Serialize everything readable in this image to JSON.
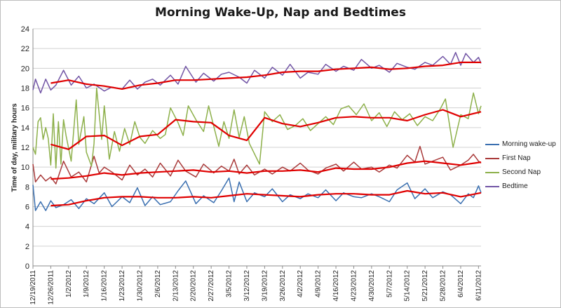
{
  "chart_data": {
    "type": "line",
    "title": "Morning Wake-Up, Nap and Bedtimes",
    "ylabel": "Time of day, military hours",
    "xlabel": "",
    "ylim": [
      0,
      24
    ],
    "yticks": [
      0,
      2,
      4,
      6,
      8,
      10,
      12,
      14,
      16,
      18,
      20,
      22,
      24
    ],
    "grid": "horizontal",
    "legend_position": "right",
    "x_range": [
      "2011-12-19",
      "2012-06-12"
    ],
    "x_tick_labels": [
      "12/19/2011",
      "12/26/2011",
      "1/2/2012",
      "1/9/2012",
      "1/16/2012",
      "1/23/2012",
      "1/30/2012",
      "2/6/2012",
      "2/13/2012",
      "2/20/2012",
      "2/27/2012",
      "3/5/2012",
      "3/12/2012",
      "3/19/2012",
      "3/26/2012",
      "4/2/2012",
      "4/9/2012",
      "4/16/2012",
      "4/23/2012",
      "4/30/2012",
      "5/7/2012",
      "5/14/2012",
      "5/21/2012",
      "5/28/2012",
      "6/4/2012",
      "6/11/2012"
    ],
    "x_tick_dates": [
      "2011-12-19",
      "2011-12-26",
      "2012-01-02",
      "2012-01-09",
      "2012-01-16",
      "2012-01-23",
      "2012-01-30",
      "2012-02-06",
      "2012-02-13",
      "2012-02-20",
      "2012-02-27",
      "2012-03-05",
      "2012-03-12",
      "2012-03-19",
      "2012-03-26",
      "2012-04-02",
      "2012-04-09",
      "2012-04-16",
      "2012-04-23",
      "2012-04-30",
      "2012-05-07",
      "2012-05-14",
      "2012-05-21",
      "2012-05-28",
      "2012-06-04",
      "2012-06-11"
    ],
    "series": [
      {
        "name": "Morning wake-up",
        "color": "#3a6fb0",
        "x": [
          "2011-12-19",
          "2011-12-20",
          "2011-12-22",
          "2011-12-24",
          "2011-12-26",
          "2011-12-28",
          "2011-12-31",
          "2012-01-03",
          "2012-01-06",
          "2012-01-09",
          "2012-01-12",
          "2012-01-16",
          "2012-01-19",
          "2012-01-23",
          "2012-01-26",
          "2012-01-29",
          "2012-02-01",
          "2012-02-04",
          "2012-02-07",
          "2012-02-11",
          "2012-02-14",
          "2012-02-17",
          "2012-02-21",
          "2012-02-24",
          "2012-02-28",
          "2012-03-02",
          "2012-03-05",
          "2012-03-07",
          "2012-03-09",
          "2012-03-12",
          "2012-03-15",
          "2012-03-19",
          "2012-03-22",
          "2012-03-26",
          "2012-03-29",
          "2012-04-02",
          "2012-04-05",
          "2012-04-09",
          "2012-04-12",
          "2012-04-16",
          "2012-04-19",
          "2012-04-23",
          "2012-04-26",
          "2012-04-30",
          "2012-05-03",
          "2012-05-07",
          "2012-05-10",
          "2012-05-14",
          "2012-05-17",
          "2012-05-21",
          "2012-05-24",
          "2012-05-28",
          "2012-05-31",
          "2012-06-04",
          "2012-06-07",
          "2012-06-09",
          "2012-06-11",
          "2012-06-12"
        ],
        "values": [
          8.2,
          5.6,
          6.5,
          5.6,
          6.6,
          5.9,
          6.2,
          6.7,
          5.8,
          6.8,
          6.3,
          7.4,
          6.0,
          7.0,
          6.4,
          7.9,
          6.1,
          7.0,
          6.2,
          6.5,
          7.6,
          8.6,
          6.3,
          7.1,
          6.4,
          7.6,
          8.9,
          6.5,
          8.5,
          6.5,
          7.4,
          7.0,
          7.8,
          6.5,
          7.2,
          6.8,
          7.3,
          6.9,
          7.7,
          6.6,
          7.4,
          7.0,
          6.9,
          7.3,
          7.0,
          6.5,
          7.7,
          8.4,
          6.8,
          7.8,
          6.9,
          7.5,
          7.2,
          6.3,
          7.3,
          6.9,
          8.1,
          7.4
        ]
      },
      {
        "name": "First Nap",
        "color": "#a93a3a",
        "x": [
          "2011-12-19",
          "2011-12-20",
          "2011-12-22",
          "2011-12-24",
          "2011-12-26",
          "2011-12-28",
          "2011-12-31",
          "2012-01-03",
          "2012-01-06",
          "2012-01-09",
          "2012-01-12",
          "2012-01-14",
          "2012-01-16",
          "2012-01-19",
          "2012-01-23",
          "2012-01-26",
          "2012-01-29",
          "2012-02-01",
          "2012-02-04",
          "2012-02-07",
          "2012-02-11",
          "2012-02-14",
          "2012-02-17",
          "2012-02-21",
          "2012-02-24",
          "2012-02-28",
          "2012-03-02",
          "2012-03-05",
          "2012-03-07",
          "2012-03-09",
          "2012-03-12",
          "2012-03-15",
          "2012-03-19",
          "2012-03-22",
          "2012-03-26",
          "2012-03-29",
          "2012-04-02",
          "2012-04-05",
          "2012-04-09",
          "2012-04-12",
          "2012-04-16",
          "2012-04-19",
          "2012-04-23",
          "2012-04-26",
          "2012-04-30",
          "2012-05-03",
          "2012-05-07",
          "2012-05-10",
          "2012-05-14",
          "2012-05-17",
          "2012-05-19",
          "2012-05-21",
          "2012-05-24",
          "2012-05-28",
          "2012-05-31",
          "2012-06-04",
          "2012-06-07",
          "2012-06-09",
          "2012-06-11",
          "2012-06-12"
        ],
        "values": [
          10.3,
          8.5,
          9.2,
          8.6,
          9.0,
          8.3,
          10.6,
          9.0,
          9.5,
          8.5,
          11.1,
          9.4,
          10.0,
          9.5,
          8.7,
          10.2,
          9.2,
          9.8,
          9.0,
          10.4,
          9.1,
          10.7,
          9.6,
          9.0,
          10.3,
          9.4,
          10.1,
          9.6,
          10.8,
          9.3,
          10.2,
          9.2,
          9.8,
          9.3,
          10.0,
          9.6,
          10.4,
          9.7,
          9.3,
          9.9,
          10.3,
          9.6,
          10.5,
          9.8,
          10.0,
          9.5,
          10.2,
          9.9,
          11.2,
          10.5,
          12.1,
          10.3,
          10.6,
          11.0,
          9.7,
          10.2,
          10.7,
          11.3,
          10.6,
          10.4
        ]
      },
      {
        "name": "Second Nap",
        "color": "#8db04a",
        "x": [
          "2011-12-19",
          "2011-12-20",
          "2011-12-21",
          "2011-12-22",
          "2011-12-23",
          "2011-12-24",
          "2011-12-25",
          "2011-12-26",
          "2011-12-27",
          "2011-12-28",
          "2011-12-29",
          "2011-12-30",
          "2011-12-31",
          "2012-01-01",
          "2012-01-03",
          "2012-01-05",
          "2012-01-06",
          "2012-01-08",
          "2012-01-09",
          "2012-01-11",
          "2012-01-12",
          "2012-01-13",
          "2012-01-15",
          "2012-01-16",
          "2012-01-18",
          "2012-01-20",
          "2012-01-22",
          "2012-01-24",
          "2012-01-26",
          "2012-01-28",
          "2012-01-30",
          "2012-02-01",
          "2012-02-04",
          "2012-02-07",
          "2012-02-09",
          "2012-02-11",
          "2012-02-14",
          "2012-02-16",
          "2012-02-18",
          "2012-02-21",
          "2012-02-24",
          "2012-02-26",
          "2012-03-01",
          "2012-03-03",
          "2012-03-05",
          "2012-03-07",
          "2012-03-09",
          "2012-03-11",
          "2012-03-13",
          "2012-03-17",
          "2012-03-19",
          "2012-03-22",
          "2012-03-25",
          "2012-03-28",
          "2012-03-31",
          "2012-04-03",
          "2012-04-06",
          "2012-04-09",
          "2012-04-12",
          "2012-04-15",
          "2012-04-18",
          "2012-04-21",
          "2012-04-24",
          "2012-04-27",
          "2012-04-30",
          "2012-05-03",
          "2012-05-06",
          "2012-05-09",
          "2012-05-12",
          "2012-05-15",
          "2012-05-18",
          "2012-05-21",
          "2012-05-24",
          "2012-05-27",
          "2012-05-29",
          "2012-06-01",
          "2012-06-04",
          "2012-06-07",
          "2012-06-09",
          "2012-06-11",
          "2012-06-12"
        ],
        "values": [
          12.0,
          11.3,
          14.6,
          15.0,
          12.8,
          14.0,
          12.9,
          10.2,
          15.4,
          9.9,
          14.6,
          10.3,
          14.8,
          13.2,
          10.6,
          16.8,
          12.3,
          15.1,
          11.5,
          10.1,
          12.4,
          18.0,
          12.8,
          16.2,
          10.8,
          13.6,
          11.6,
          13.9,
          12.3,
          14.6,
          13.0,
          12.4,
          13.7,
          12.9,
          13.3,
          16.0,
          14.5,
          13.2,
          16.2,
          14.8,
          13.6,
          16.2,
          12.1,
          14.6,
          12.9,
          15.8,
          13.0,
          15.1,
          12.4,
          10.3,
          15.6,
          14.6,
          15.3,
          13.8,
          14.2,
          14.9,
          13.7,
          14.4,
          15.1,
          14.3,
          15.9,
          16.2,
          15.3,
          16.4,
          14.7,
          15.5,
          14.1,
          15.6,
          14.8,
          15.4,
          14.2,
          15.1,
          14.7,
          15.9,
          16.9,
          12.0,
          15.3,
          14.9,
          17.5,
          15.4,
          16.2
        ]
      },
      {
        "name": "Bedtime",
        "color": "#7255a5",
        "x": [
          "2011-12-19",
          "2011-12-20",
          "2011-12-22",
          "2011-12-24",
          "2011-12-26",
          "2011-12-28",
          "2011-12-31",
          "2012-01-03",
          "2012-01-06",
          "2012-01-09",
          "2012-01-12",
          "2012-01-16",
          "2012-01-19",
          "2012-01-23",
          "2012-01-26",
          "2012-01-29",
          "2012-02-01",
          "2012-02-04",
          "2012-02-07",
          "2012-02-11",
          "2012-02-14",
          "2012-02-17",
          "2012-02-21",
          "2012-02-24",
          "2012-02-28",
          "2012-03-02",
          "2012-03-05",
          "2012-03-09",
          "2012-03-12",
          "2012-03-15",
          "2012-03-19",
          "2012-03-22",
          "2012-03-26",
          "2012-03-29",
          "2012-04-02",
          "2012-04-05",
          "2012-04-09",
          "2012-04-12",
          "2012-04-16",
          "2012-04-19",
          "2012-04-23",
          "2012-04-26",
          "2012-04-30",
          "2012-05-03",
          "2012-05-07",
          "2012-05-10",
          "2012-05-14",
          "2012-05-17",
          "2012-05-21",
          "2012-05-24",
          "2012-05-28",
          "2012-05-31",
          "2012-06-02",
          "2012-06-04",
          "2012-06-06",
          "2012-06-09",
          "2012-06-11",
          "2012-06-12"
        ],
        "values": [
          17.8,
          18.9,
          17.5,
          18.9,
          17.8,
          18.3,
          19.8,
          18.3,
          19.2,
          18.0,
          18.4,
          17.7,
          18.1,
          17.9,
          18.8,
          17.9,
          18.6,
          18.9,
          18.3,
          19.3,
          18.4,
          20.2,
          18.6,
          19.5,
          18.7,
          19.4,
          19.6,
          19.1,
          18.5,
          19.8,
          19.0,
          20.1,
          19.3,
          20.4,
          19.0,
          19.6,
          19.4,
          20.4,
          19.7,
          20.2,
          19.8,
          20.9,
          20.0,
          20.3,
          19.6,
          20.5,
          20.1,
          19.9,
          20.6,
          20.3,
          21.2,
          20.4,
          21.6,
          20.3,
          21.5,
          20.6,
          21.1,
          20.5
        ]
      },
      {
        "name": "",
        "color": "#e00000",
        "x": [
          "2011-12-26",
          "2012-01-02",
          "2012-01-09",
          "2012-01-16",
          "2012-01-23",
          "2012-01-30",
          "2012-02-06",
          "2012-02-13",
          "2012-02-20",
          "2012-02-27",
          "2012-03-05",
          "2012-03-12",
          "2012-03-19",
          "2012-03-26",
          "2012-04-02",
          "2012-04-09",
          "2012-04-16",
          "2012-04-23",
          "2012-04-30",
          "2012-05-07",
          "2012-05-14",
          "2012-05-21",
          "2012-05-28",
          "2012-06-04",
          "2012-06-12"
        ],
        "values": [
          6.1,
          6.2,
          6.6,
          6.9,
          7.0,
          7.0,
          6.9,
          6.9,
          7.0,
          6.9,
          7.1,
          7.3,
          7.2,
          7.1,
          7.0,
          7.2,
          7.3,
          7.3,
          7.2,
          7.2,
          7.6,
          7.3,
          7.4,
          7.0,
          7.4
        ]
      },
      {
        "name": "",
        "color": "#e00000",
        "x": [
          "2011-12-26",
          "2012-01-02",
          "2012-01-09",
          "2012-01-16",
          "2012-01-23",
          "2012-01-30",
          "2012-02-06",
          "2012-02-13",
          "2012-02-20",
          "2012-02-27",
          "2012-03-05",
          "2012-03-12",
          "2012-03-19",
          "2012-03-26",
          "2012-04-02",
          "2012-04-09",
          "2012-04-16",
          "2012-04-23",
          "2012-04-30",
          "2012-05-07",
          "2012-05-14",
          "2012-05-21",
          "2012-05-28",
          "2012-06-04",
          "2012-06-12"
        ],
        "values": [
          8.8,
          8.9,
          9.1,
          9.4,
          9.2,
          9.4,
          9.5,
          9.6,
          9.7,
          9.5,
          9.6,
          9.4,
          9.6,
          9.6,
          9.7,
          9.5,
          9.9,
          9.8,
          9.8,
          10.0,
          10.4,
          10.6,
          10.4,
          10.2,
          10.5
        ]
      },
      {
        "name": "",
        "color": "#e00000",
        "x": [
          "2011-12-26",
          "2012-01-02",
          "2012-01-09",
          "2012-01-16",
          "2012-01-23",
          "2012-01-30",
          "2012-02-06",
          "2012-02-13",
          "2012-02-20",
          "2012-02-27",
          "2012-03-05",
          "2012-03-12",
          "2012-03-19",
          "2012-03-26",
          "2012-04-02",
          "2012-04-09",
          "2012-04-16",
          "2012-04-23",
          "2012-04-30",
          "2012-05-07",
          "2012-05-14",
          "2012-05-21",
          "2012-05-28",
          "2012-06-04",
          "2012-06-12"
        ],
        "values": [
          12.3,
          11.8,
          13.1,
          13.2,
          12.2,
          13.1,
          13.3,
          14.8,
          14.6,
          14.5,
          13.2,
          12.7,
          15.0,
          14.4,
          14.1,
          14.5,
          15.0,
          15.1,
          15.0,
          15.0,
          14.7,
          15.3,
          15.8,
          15.1,
          15.6
        ]
      },
      {
        "name": "",
        "color": "#e00000",
        "x": [
          "2011-12-26",
          "2012-01-02",
          "2012-01-09",
          "2012-01-16",
          "2012-01-23",
          "2012-01-30",
          "2012-02-06",
          "2012-02-13",
          "2012-02-20",
          "2012-02-27",
          "2012-03-05",
          "2012-03-12",
          "2012-03-19",
          "2012-03-26",
          "2012-04-02",
          "2012-04-09",
          "2012-04-16",
          "2012-04-23",
          "2012-04-30",
          "2012-05-07",
          "2012-05-14",
          "2012-05-21",
          "2012-05-28",
          "2012-06-04",
          "2012-06-12"
        ],
        "values": [
          18.5,
          18.8,
          18.4,
          18.2,
          17.9,
          18.3,
          18.5,
          18.8,
          18.8,
          18.9,
          19.0,
          19.1,
          19.3,
          19.6,
          19.7,
          19.7,
          19.9,
          20.0,
          20.1,
          19.9,
          20.0,
          20.2,
          20.3,
          20.6,
          20.6
        ]
      }
    ]
  }
}
